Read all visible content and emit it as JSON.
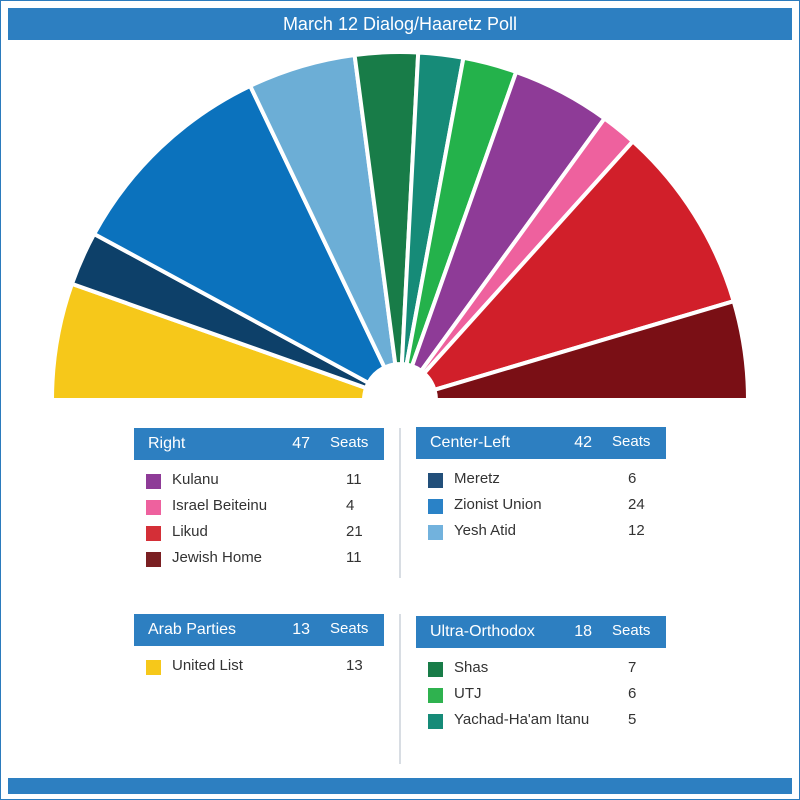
{
  "title": "March 12 Dialog/Haaretz Poll",
  "seats_label": "Seats",
  "chart_data": {
    "type": "pie",
    "title": "March 12 Dialog/Haaretz Poll",
    "subtype": "semicircle (parliament)",
    "categories": [
      "United List",
      "Meretz",
      "Zionist Union",
      "Yesh Atid",
      "Shas",
      "Yachad-Ha'am Itanu",
      "UTJ",
      "Kulanu",
      "Israel Beiteinu",
      "Likud",
      "Jewish Home"
    ],
    "values": [
      13,
      6,
      24,
      12,
      7,
      5,
      6,
      11,
      4,
      21,
      11
    ],
    "colors": [
      "#f6c81a",
      "#0d4069",
      "#0b72bd",
      "#6caed6",
      "#187c48",
      "#168b78",
      "#24b24b",
      "#8e3b97",
      "#ee619e",
      "#d11f2a",
      "#7a0f15"
    ]
  },
  "blocs": {
    "right": {
      "name": "Right",
      "total": "47",
      "parties": [
        {
          "name": "Kulanu",
          "seats": "11",
          "color": "#8e3b97"
        },
        {
          "name": "Israel Beiteinu",
          "seats": "4",
          "color": "#ee619e"
        },
        {
          "name": "Likud",
          "seats": "21",
          "color": "#d42f37"
        },
        {
          "name": "Jewish Home",
          "seats": "11",
          "color": "#7a1f22"
        }
      ]
    },
    "center_left": {
      "name": "Center-Left",
      "total": "42",
      "parties": [
        {
          "name": "Meretz",
          "seats": "6",
          "color": "#224f7a"
        },
        {
          "name": "Zionist Union",
          "seats": "24",
          "color": "#2a82c7"
        },
        {
          "name": "Yesh Atid",
          "seats": "12",
          "color": "#72b2dd"
        }
      ]
    },
    "arab": {
      "name": "Arab Parties",
      "total": "13",
      "parties": [
        {
          "name": "United List",
          "seats": "13",
          "color": "#f6c81a"
        }
      ]
    },
    "ultra_orthodox": {
      "name": "Ultra-Orthodox",
      "total": "18",
      "parties": [
        {
          "name": "Shas",
          "seats": "7",
          "color": "#187c48"
        },
        {
          "name": "UTJ",
          "seats": "6",
          "color": "#2fb24f"
        },
        {
          "name": "Yachad-Ha'am Itanu",
          "seats": "5",
          "color": "#168b78"
        }
      ]
    }
  }
}
